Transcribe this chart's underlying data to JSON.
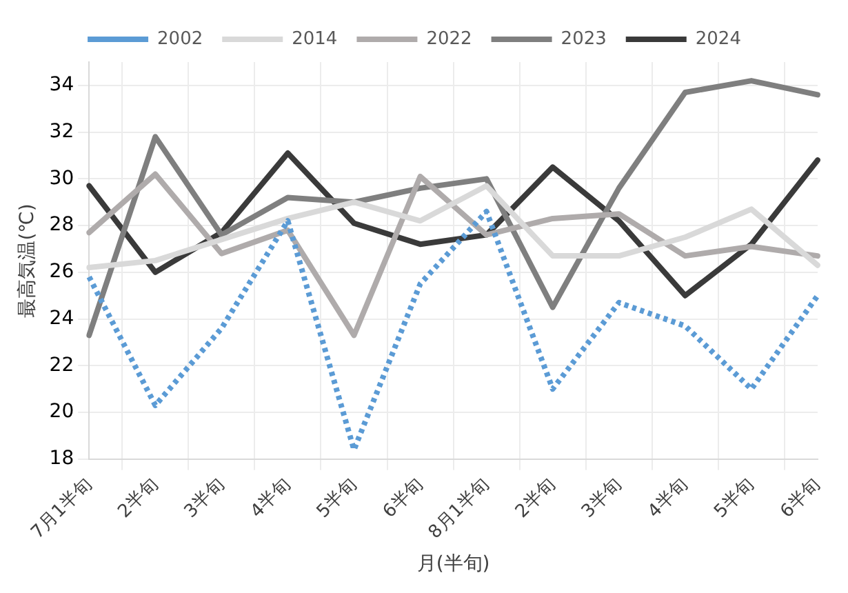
{
  "chart_data": {
    "type": "line",
    "xlabel": "月(半旬)",
    "ylabel": "最高気温(℃)",
    "categories": [
      "7月1半旬",
      "2半旬",
      "3半旬",
      "4半旬",
      "5半旬",
      "6半旬",
      "8月1半旬",
      "2半旬",
      "3半旬",
      "4半旬",
      "5半旬",
      "6半旬"
    ],
    "series": [
      {
        "name": "2002",
        "color": "#5b9bd5",
        "line_style": "dotted",
        "values": [
          25.8,
          20.3,
          23.6,
          28.2,
          18.4,
          25.5,
          28.6,
          21.0,
          24.7,
          23.7,
          21.0,
          25.0
        ]
      },
      {
        "name": "2014",
        "color": "#d9d9d9",
        "values": [
          26.2,
          26.5,
          27.4,
          28.3,
          29.0,
          28.2,
          29.7,
          26.7,
          26.7,
          27.5,
          28.7,
          26.3
        ]
      },
      {
        "name": "2022",
        "color": "#afabab",
        "values": [
          27.7,
          30.2,
          26.8,
          27.8,
          23.3,
          30.1,
          27.6,
          28.3,
          28.5,
          26.7,
          27.1,
          26.7
        ]
      },
      {
        "name": "2023",
        "color": "#7f7f7f",
        "values": [
          23.3,
          31.8,
          27.6,
          29.2,
          29.0,
          29.6,
          30.0,
          24.5,
          29.6,
          33.7,
          34.2,
          33.6
        ]
      },
      {
        "name": "2024",
        "color": "#3a3a3a",
        "values": [
          29.7,
          26.0,
          27.7,
          31.1,
          28.1,
          27.2,
          27.6,
          30.5,
          28.2,
          25.0,
          27.2,
          30.8
        ]
      }
    ],
    "ylim": [
      18,
      35
    ],
    "yticks": [
      18,
      20,
      22,
      24,
      26,
      28,
      30,
      32,
      34
    ],
    "grid": true,
    "legend": "top",
    "marker": "none",
    "line_style": "solid"
  }
}
